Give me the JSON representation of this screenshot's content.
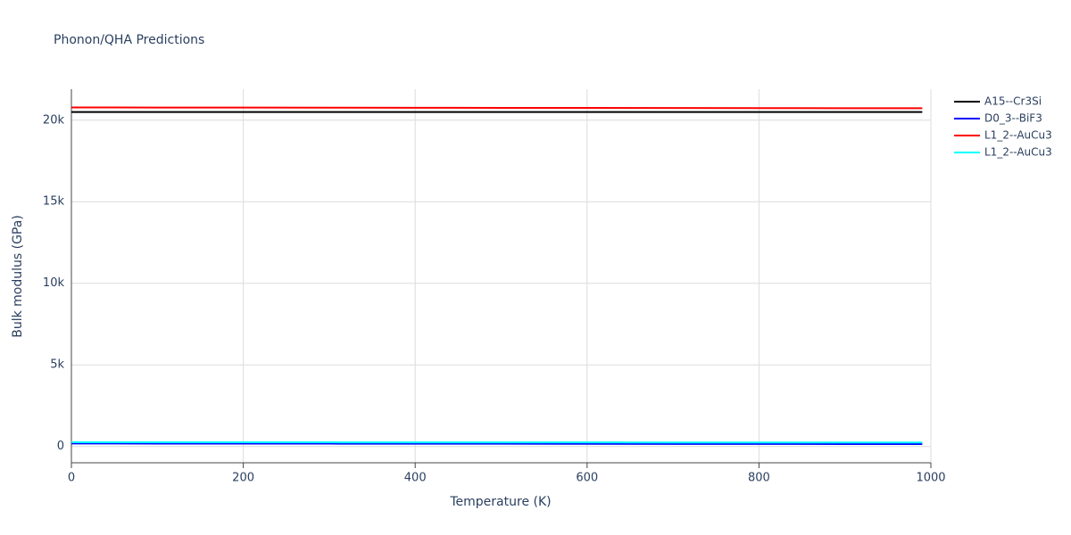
{
  "chart_data": {
    "type": "line",
    "title": "Phonon/QHA Predictions",
    "xlabel": "Temperature (K)",
    "ylabel": "Bulk modulus (GPa)",
    "x": [
      0,
      100,
      200,
      300,
      400,
      500,
      600,
      700,
      800,
      900,
      990
    ],
    "series": [
      {
        "name": "A15--Cr3Si",
        "color": "#000000",
        "values": [
          20500,
          20500,
          20500,
          20500,
          20500,
          20500,
          20500,
          20500,
          20500,
          20500,
          20500
        ]
      },
      {
        "name": "D0_3--BiF3",
        "color": "#0000ff",
        "values": [
          180,
          178,
          175,
          172,
          168,
          165,
          161,
          157,
          153,
          149,
          145
        ]
      },
      {
        "name": "L1_2--AuCu3",
        "color": "#ff0000",
        "values": [
          20780,
          20775,
          20770,
          20765,
          20760,
          20755,
          20750,
          20745,
          20740,
          20735,
          20730
        ]
      },
      {
        "name": "L1_2--AuCu3",
        "color": "#00ffff",
        "values": [
          260,
          258,
          256,
          254,
          252,
          250,
          248,
          246,
          244,
          242,
          240
        ]
      }
    ],
    "xlim": [
      0,
      1000
    ],
    "xticks": [
      0,
      200,
      400,
      600,
      800,
      1000
    ],
    "ylim": [
      -1000,
      21900
    ],
    "yticks": [
      0,
      {
        "value": 5000,
        "label": "5k"
      },
      {
        "value": 10000,
        "label": "10k"
      },
      {
        "value": 15000,
        "label": "15k"
      },
      {
        "value": 20000,
        "label": "20k"
      }
    ],
    "grid": true,
    "legend": "outside-right"
  }
}
